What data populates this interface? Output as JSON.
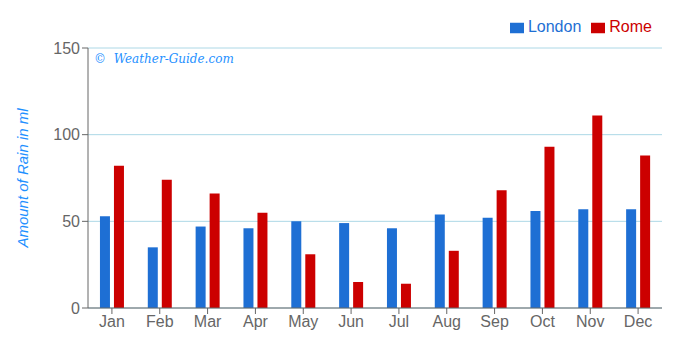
{
  "chart_data": {
    "type": "bar",
    "ylabel": "Amount of Rain in ml",
    "annotations": [
      "©  Weather-Guide.com"
    ],
    "categories": [
      "Jan",
      "Feb",
      "Mar",
      "Apr",
      "May",
      "Jun",
      "Jul",
      "Aug",
      "Sep",
      "Oct",
      "Nov",
      "Dec"
    ],
    "series": [
      {
        "name": "London",
        "color": "#1e6fd4",
        "values": [
          53,
          35,
          47,
          46,
          50,
          49,
          46,
          54,
          52,
          56,
          57,
          57
        ]
      },
      {
        "name": "Rome",
        "color": "#cc0000",
        "values": [
          82,
          74,
          66,
          55,
          31,
          15,
          14,
          33,
          68,
          93,
          111,
          88
        ]
      }
    ],
    "ylim": [
      0,
      150
    ],
    "yticks": [
      0,
      50,
      100,
      150
    ],
    "grid": true,
    "legend": "upper right"
  }
}
